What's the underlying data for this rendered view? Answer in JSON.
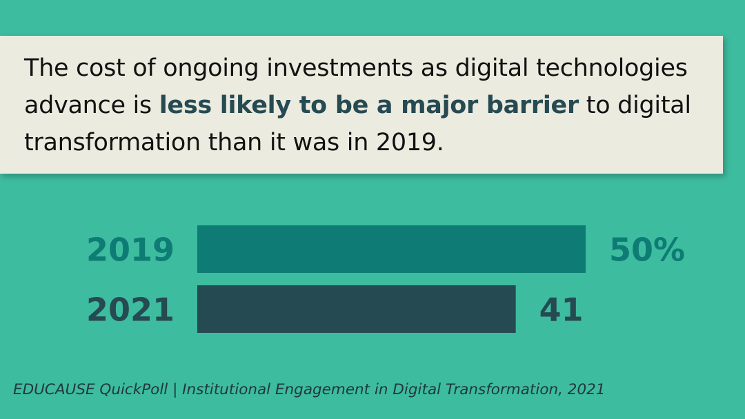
{
  "headline": {
    "part1": "The cost of ongoing investments as digital technologies advance is ",
    "highlight": "less likely to be a major barrier",
    "part2": " to digital transformation than it was in 2019."
  },
  "chart_data": {
    "type": "bar",
    "orientation": "horizontal",
    "categories": [
      "2019",
      "2021"
    ],
    "values": [
      50,
      41
    ],
    "value_labels": [
      "50%",
      "41"
    ],
    "bar_colors": [
      "#0e7c74",
      "#264a52"
    ],
    "label_colors": [
      "#0e7c74",
      "#264a52"
    ],
    "xlim": [
      0,
      50
    ]
  },
  "source": "EDUCAUSE QuickPoll | Institutional Engagement in Digital Transformation, 2021",
  "colors": {
    "background": "#3dbc9f",
    "banner": "#ecebdf",
    "highlight_text": "#264a52"
  }
}
